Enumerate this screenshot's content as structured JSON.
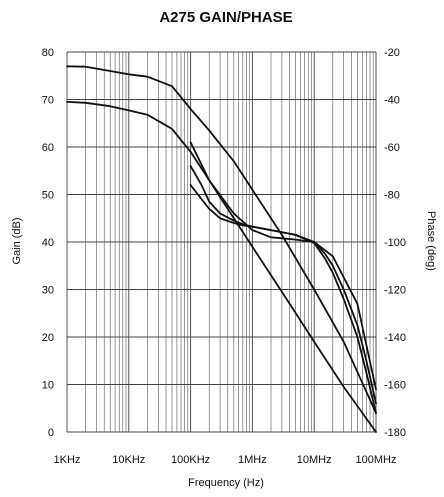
{
  "chart_data": {
    "type": "line",
    "title": "A275 GAIN/PHASE",
    "xlabel": "Frequency (Hz)",
    "ylabel": "Gain (dB)",
    "y2label": "Phase (deg)",
    "xscale": "log",
    "xlim": [
      1000,
      100000000
    ],
    "ylim": [
      0,
      80
    ],
    "y2lim": [
      -180,
      -20
    ],
    "grid": true,
    "x_ticks": [
      {
        "value": 1000,
        "label": "1KHz"
      },
      {
        "value": 10000,
        "label": "10KHz"
      },
      {
        "value": 100000,
        "label": "100KHz"
      },
      {
        "value": 1000000,
        "label": "1MHz"
      },
      {
        "value": 10000000,
        "label": "10MHz"
      },
      {
        "value": 100000000,
        "label": "100MHz"
      }
    ],
    "y_ticks": [
      "0",
      "10",
      "20",
      "30",
      "40",
      "50",
      "60",
      "70",
      "80"
    ],
    "y2_ticks": [
      "-180",
      "-160",
      "-140",
      "-120",
      "-100",
      "-80",
      "-60",
      "-40",
      "-20"
    ],
    "series": [
      {
        "axis": "left",
        "x": [
          1000,
          2000,
          5000,
          10000,
          20000,
          50000,
          100000,
          200000,
          500000,
          1000000,
          3000000,
          10000000,
          30000000,
          100000000
        ],
        "y": [
          77,
          76.9,
          76,
          75.3,
          74.8,
          72.8,
          68,
          63.5,
          57,
          51,
          41.5,
          30,
          19,
          4
        ]
      },
      {
        "axis": "left",
        "x": [
          1000,
          2000,
          5000,
          10000,
          20000,
          50000,
          100000,
          200000,
          500000,
          1000000,
          3000000,
          10000000,
          30000000,
          100000000
        ],
        "y": [
          69.5,
          69.3,
          68.6,
          67.7,
          66.8,
          63.8,
          59,
          53,
          45,
          39,
          29.5,
          19,
          9.5,
          0
        ]
      },
      {
        "axis": "right",
        "x": [
          100000,
          150000,
          200000,
          300000,
          500000,
          700000,
          1000000,
          2000000,
          5000000,
          10000000,
          15000000,
          20000000,
          30000000,
          50000000,
          70000000,
          100000000
        ],
        "y": [
          -76,
          -82,
          -86,
          -90,
          -92,
          -93,
          -93.5,
          -95,
          -97,
          -100,
          -105,
          -110,
          -120,
          -135,
          -150,
          -168
        ]
      },
      {
        "axis": "right",
        "x": [
          100000,
          150000,
          200000,
          300000,
          500000,
          700000,
          1000000,
          2000000,
          5000000,
          10000000,
          15000000,
          20000000,
          30000000,
          50000000,
          70000000,
          100000000
        ],
        "y": [
          -68,
          -76,
          -83,
          -88,
          -91,
          -92.5,
          -93.5,
          -95,
          -97,
          -100.5,
          -107,
          -113,
          -124,
          -140,
          -155,
          -172
        ]
      },
      {
        "axis": "right",
        "x": [
          100000,
          200000,
          500000,
          1000000,
          2000000,
          5000000,
          10000000,
          20000000,
          50000000,
          100000000
        ],
        "y": [
          -58,
          -74,
          -88,
          -95,
          -98,
          -99,
          -100,
          -106,
          -126,
          -162
        ]
      }
    ]
  }
}
